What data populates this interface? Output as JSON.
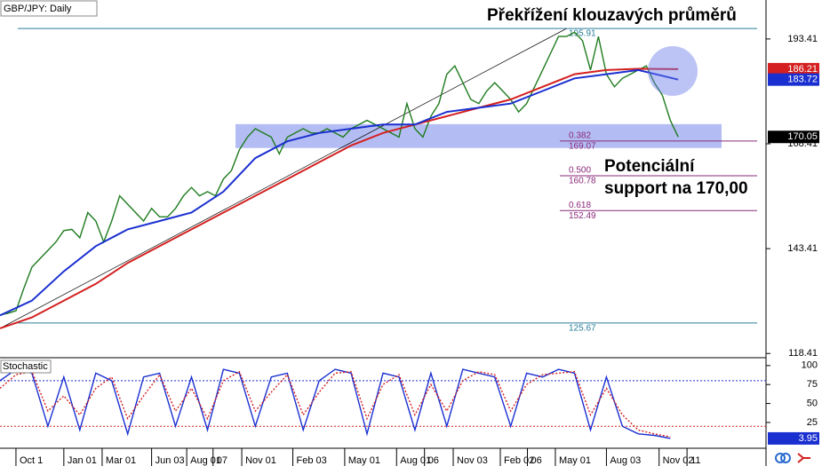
{
  "chart_data": [
    {
      "type": "line",
      "symbol": "GBP/JPY: Daily",
      "title": "Překřížení klouzavých průměrů",
      "annotation": [
        "Potenciální",
        "support na 170,00"
      ],
      "xlim": [
        0,
        96
      ],
      "ylim": [
        117.4,
        202.7
      ],
      "yticks": [
        118.41,
        143.41,
        168.41,
        193.41
      ],
      "xticks": [
        {
          "value": 2,
          "label": "Oct 1"
        },
        {
          "value": 8,
          "label": "Jan 01"
        },
        {
          "value": 12.8,
          "label": "Mar 01"
        },
        {
          "value": 19,
          "label": "Jun 03"
        },
        {
          "value": 23.4,
          "label": "Aug 01"
        },
        {
          "value": 26.7,
          "label": "07"
        },
        {
          "value": 30.3,
          "label": "Nov 01"
        },
        {
          "value": 36.7,
          "label": "Feb 03"
        },
        {
          "value": 43.2,
          "label": "May 01"
        },
        {
          "value": 49.7,
          "label": "Aug 01"
        },
        {
          "value": 53.2,
          "label": "06"
        },
        {
          "value": 56.8,
          "label": "Nov 03"
        },
        {
          "value": 62.7,
          "label": "Feb 02"
        },
        {
          "value": 66.1,
          "label": "06"
        },
        {
          "value": 69.6,
          "label": "May 01"
        },
        {
          "value": 76,
          "label": "Aug 03"
        },
        {
          "value": 82.6,
          "label": "Nov 02"
        },
        {
          "value": 86.1,
          "label": "11"
        }
      ],
      "series": [
        {
          "color": "#1e7b1e",
          "x": [
            0,
            1,
            2,
            3,
            4,
            5,
            6,
            7,
            8,
            9,
            10,
            11,
            12,
            13,
            14,
            15,
            16,
            17,
            18,
            19,
            20,
            21,
            22,
            23,
            24,
            25,
            26,
            27,
            28,
            29,
            30,
            31,
            32,
            33,
            34,
            35,
            36,
            37,
            38,
            39,
            40,
            41,
            42,
            43,
            44,
            45,
            46,
            47,
            48,
            49,
            50,
            51,
            52,
            53,
            54,
            55,
            56,
            57,
            58,
            59,
            60,
            61,
            62,
            63,
            64,
            65,
            66,
            67,
            68,
            69,
            70,
            71,
            72,
            73,
            74,
            75,
            76,
            77,
            78,
            79,
            80,
            81,
            82,
            83,
            84,
            85
          ],
          "values": [
            127.6,
            128,
            128.6,
            134,
            139,
            141,
            143,
            145,
            147.7,
            148,
            146,
            152,
            150,
            145,
            150,
            156,
            154,
            152,
            150,
            153,
            151,
            151,
            153,
            156,
            158,
            156,
            157,
            156,
            160,
            162,
            167,
            170,
            172,
            171,
            170,
            166,
            170,
            171,
            172,
            171,
            171,
            172,
            171,
            170,
            172,
            173,
            174,
            173,
            172,
            171,
            170,
            178,
            172,
            170,
            175,
            178,
            185,
            187,
            183,
            179,
            178,
            181,
            183,
            181,
            179,
            176,
            178,
            182,
            186,
            190,
            194,
            194,
            195,
            193,
            186,
            194,
            185,
            182,
            184,
            185,
            186,
            187,
            183,
            180,
            174,
            170.05
          ]
        },
        {
          "color": "#d42020",
          "x": [
            0,
            4,
            8,
            12,
            16,
            20,
            24,
            28,
            32,
            36,
            40,
            44,
            48,
            52,
            56,
            60,
            64,
            68,
            72,
            76,
            80,
            85
          ],
          "values": [
            124.4,
            127,
            131,
            135,
            140,
            144,
            148,
            152,
            156,
            160,
            164,
            168,
            171,
            173,
            175,
            177,
            179,
            182,
            185,
            186,
            186.3,
            186.21
          ]
        },
        {
          "color": "#1a2fd0",
          "x": [
            0,
            4,
            8,
            12,
            16,
            20,
            24,
            28,
            32,
            36,
            40,
            44,
            48,
            52,
            56,
            60,
            64,
            68,
            72,
            76,
            80,
            85
          ],
          "values": [
            127.5,
            131,
            138,
            144,
            148,
            150,
            152,
            157,
            165,
            169,
            171,
            172,
            173,
            173,
            176,
            177,
            178,
            181,
            184,
            185,
            186,
            183.72
          ]
        }
      ],
      "levels": [
        {
          "value": 195.91,
          "color": "#2a7d9a"
        },
        {
          "value": 125.67,
          "color": "#2a7d9a"
        }
      ],
      "fib": [
        {
          "ratio": "0.382",
          "value": 169.07
        },
        {
          "ratio": "0.500",
          "value": 160.78
        },
        {
          "ratio": "0.618",
          "value": 152.49
        }
      ],
      "zone": [
        167.4,
        173.1
      ],
      "trendline": {
        "x": [
          0,
          71
        ],
        "values": [
          124.4,
          195.9
        ]
      }
    },
    {
      "type": "line",
      "title": "Stochastic",
      "xlim": [
        0,
        96
      ],
      "ylim": [
        -9,
        108
      ],
      "yticks": [
        25,
        50,
        75,
        100
      ],
      "levels": [
        {
          "value": 20,
          "color": "#d42020"
        },
        {
          "value": 80,
          "color": "#1a2fd0"
        }
      ],
      "series": [
        {
          "color": "#1a2fd0",
          "x": [
            0,
            2,
            4,
            6,
            8,
            10,
            12,
            14,
            16,
            18,
            20,
            22,
            24,
            26,
            28,
            30,
            32,
            34,
            36,
            38,
            40,
            42,
            44,
            46,
            48,
            50,
            52,
            54,
            56,
            58,
            60,
            62,
            64,
            66,
            68,
            70,
            72,
            74,
            76,
            78,
            80,
            82,
            84
          ],
          "values": [
            80,
            95,
            90,
            20,
            85,
            15,
            90,
            80,
            10,
            85,
            90,
            20,
            85,
            15,
            95,
            90,
            20,
            85,
            90,
            15,
            80,
            95,
            90,
            10,
            90,
            85,
            15,
            90,
            20,
            95,
            90,
            85,
            20,
            90,
            85,
            95,
            90,
            15,
            85,
            20,
            10,
            8,
            3.95
          ]
        },
        {
          "color": "#d42020",
          "x": [
            0,
            2,
            4,
            6,
            8,
            10,
            12,
            14,
            16,
            18,
            20,
            22,
            24,
            26,
            28,
            30,
            32,
            34,
            36,
            38,
            40,
            42,
            44,
            46,
            48,
            50,
            52,
            54,
            56,
            58,
            60,
            62,
            64,
            66,
            68,
            70,
            72,
            74,
            76,
            78,
            80,
            82,
            84
          ],
          "values": [
            70,
            88,
            92,
            40,
            60,
            35,
            70,
            85,
            30,
            60,
            88,
            40,
            70,
            30,
            80,
            92,
            40,
            65,
            88,
            35,
            65,
            90,
            92,
            30,
            75,
            88,
            35,
            75,
            40,
            80,
            92,
            88,
            40,
            75,
            88,
            90,
            92,
            35,
            70,
            35,
            15,
            10,
            6
          ]
        }
      ]
    }
  ]
}
